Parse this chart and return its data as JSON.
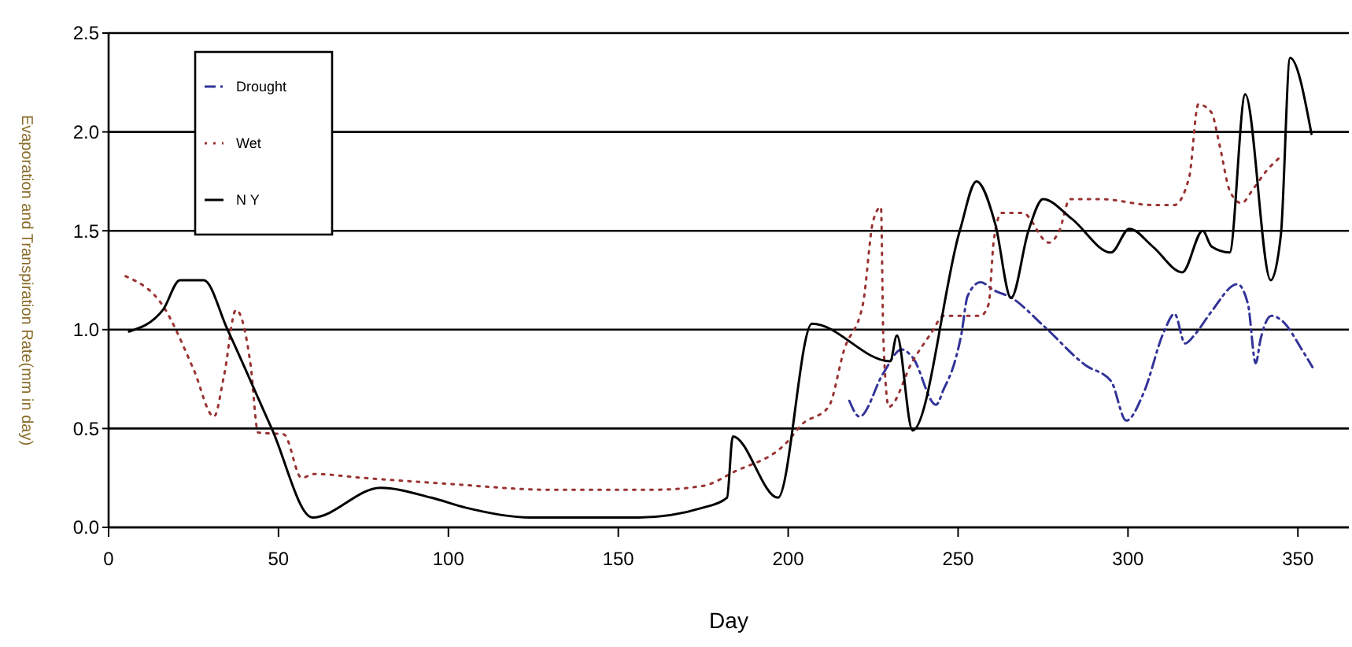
{
  "chart_data": {
    "type": "line",
    "xlabel": "Day",
    "ylabel": "Evaporation and Transpiration Rate(mm in day)",
    "xlim": [
      0,
      365
    ],
    "xticks": [
      0,
      50,
      100,
      150,
      200,
      250,
      300,
      350
    ],
    "ylim": [
      0,
      2.5
    ],
    "yticks": [
      {
        "value": 0,
        "label": "0.0"
      },
      {
        "value": 0.5,
        "label": "0.5"
      },
      {
        "value": 1,
        "label": "1.0"
      },
      {
        "value": 1.5,
        "label": "1.5"
      },
      {
        "value": 2,
        "label": "2.0"
      },
      {
        "value": 2.5,
        "label": "2.5"
      }
    ],
    "grid": "y",
    "legend": "top left",
    "marker": "none",
    "series": [
      {
        "name": "Drought",
        "color": "#333399",
        "line_style": "dashed",
        "x": [
          218,
          221,
          228,
          233.4,
          236.6,
          243.5,
          245.8,
          248.9,
          251,
          252.8,
          256.6,
          260.5,
          265.8,
          275.1,
          287.5,
          295,
          299.5,
          304.6,
          310.6,
          313.7,
          316.8,
          319.9,
          324.5,
          332.2,
          335.3,
          337.6,
          339,
          342.2,
          345,
          351.5,
          354.3
        ],
        "values": [
          0.64,
          0.56,
          0.78,
          0.9,
          0.86,
          0.62,
          0.7,
          0.83,
          0.98,
          1.17,
          1.24,
          1.2,
          1.16,
          1.02,
          0.82,
          0.74,
          0.54,
          0.68,
          0.99,
          1.08,
          0.93,
          0.98,
          1.09,
          1.23,
          1.13,
          0.83,
          0.95,
          1.07,
          1.05,
          0.89,
          0.81
        ]
      },
      {
        "name": "Wet",
        "color": "#993333",
        "line_style": "dotted",
        "x": [
          5,
          16,
          25,
          31,
          34,
          37.5,
          41.8,
          44,
          51.6,
          56.8,
          60.5,
          75,
          100,
          130,
          160,
          175,
          184,
          199.6,
          204,
          211.9,
          216.5,
          222,
          225,
          227.3,
          228,
          229.6,
          236.6,
          242,
          245.8,
          256.6,
          259,
          260.5,
          262.8,
          269,
          276.7,
          279.8,
          282.9,
          292,
          307.4,
          313.6,
          318,
          320.7,
          324.5,
          327,
          330,
          333.4,
          336.8,
          340.6,
          344.6
        ],
        "values": [
          1.27,
          1.12,
          0.8,
          0.56,
          0.77,
          1.1,
          0.82,
          0.48,
          0.47,
          0.25,
          0.27,
          0.25,
          0.22,
          0.19,
          0.19,
          0.21,
          0.28,
          0.43,
          0.52,
          0.61,
          0.9,
          1.13,
          1.55,
          1.62,
          0.96,
          0.61,
          0.84,
          0.98,
          1.07,
          1.07,
          1.13,
          1.45,
          1.59,
          1.59,
          1.44,
          1.5,
          1.66,
          1.66,
          1.63,
          1.63,
          1.77,
          2.14,
          2.1,
          1.93,
          1.7,
          1.64,
          1.71,
          1.8,
          1.87
        ]
      },
      {
        "name": "N Y",
        "color": "#000000",
        "line_style": "solid",
        "x": [
          6,
          16,
          21,
          28,
          35,
          48,
          60,
          80,
          95,
          105,
          124,
          156,
          175,
          182,
          183.7,
          197,
          207,
          230,
          232,
          236.6,
          250.5,
          255.4,
          261,
          265.6,
          270.7,
          275,
          283.5,
          295,
          300.4,
          307.3,
          316,
          322,
          324.6,
          329.9,
          334.5,
          342,
          345,
          347.7,
          354
        ],
        "values": [
          0.99,
          1.1,
          1.25,
          1.25,
          1.0,
          0.5,
          0.05,
          0.2,
          0.15,
          0.1,
          0.05,
          0.05,
          0.1,
          0.15,
          0.46,
          0.15,
          1.03,
          0.84,
          0.97,
          0.49,
          1.5,
          1.75,
          1.53,
          1.16,
          1.5,
          1.66,
          1.56,
          1.39,
          1.51,
          1.42,
          1.29,
          1.5,
          1.42,
          1.39,
          2.19,
          1.25,
          1.48,
          2.375,
          1.99
        ]
      }
    ]
  }
}
